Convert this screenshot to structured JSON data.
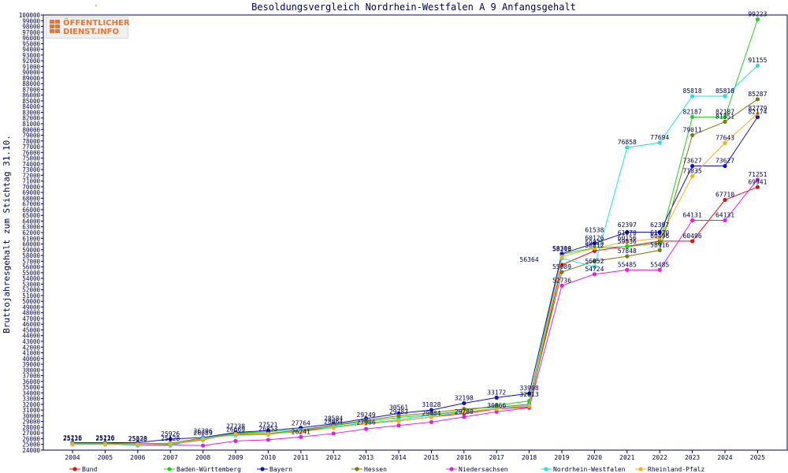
{
  "chart_data": {
    "type": "line",
    "title": "Besoldungsvergleich Nordrhein-Westfalen A 9 Anfangsgehalt",
    "ylabel": "Bruttojahresgehalt zum Stichtag 31.10.",
    "xlabel": "",
    "ylim": [
      24000,
      100000
    ],
    "ytick_step": 1000,
    "grid": false,
    "legend_position": "bottom",
    "x": [
      "2004",
      "2005",
      "2006",
      "2007",
      "2008",
      "2009",
      "2010",
      "2011",
      "2012",
      "2013",
      "2014",
      "2015",
      "2016",
      "2017",
      "2018",
      "2019",
      "2020",
      "2021",
      "2022",
      "2023",
      "2024",
      "2025"
    ],
    "series": [
      {
        "name": "Bund",
        "color": "#e01010",
        "values": [
          25100,
          25100,
          25100,
          25200,
          26100,
          26700,
          26800,
          27300,
          28100,
          28700,
          29100,
          29800,
          30400,
          31200,
          31500,
          56364,
          58800,
          59600,
          60496,
          60496,
          67710,
          69941
        ]
      },
      {
        "name": "Baden-Württemberg",
        "color": "#20d020",
        "values": [
          25200,
          25200,
          25000,
          25200,
          26000,
          27000,
          27200,
          27600,
          28300,
          29000,
          29700,
          30200,
          30900,
          31800,
          32600,
          58213,
          59325,
          59536,
          60160,
          82187,
          82187,
          99223
        ]
      },
      {
        "name": "Bayern",
        "color": "#1010c8",
        "values": [
          25300,
          25300,
          25300,
          25926,
          26200,
          27100,
          27400,
          27900,
          28600,
          29500,
          30400,
          31000,
          32198,
          33172,
          33908,
          58306,
          60126,
          62070,
          62070,
          73627,
          73627,
          82174
        ]
      },
      {
        "name": "Hessen",
        "color": "#7a7a10",
        "values": [
          25200,
          25200,
          25100,
          25000,
          25800,
          26900,
          26900,
          27500,
          28400,
          29200,
          30000,
          30500,
          31200,
          31500,
          32000,
          55089,
          57000,
          57848,
          58916,
          79011,
          81351,
          85287
        ]
      },
      {
        "name": "Niedersachsen",
        "color": "#e020e0",
        "values": [
          25000,
          25000,
          25000,
          24900,
          24800,
          25600,
          25800,
          26300,
          26900,
          27700,
          28300,
          28900,
          29800,
          30700,
          31400,
          52736,
          54724,
          55485,
          55485,
          64131,
          64131,
          71251
        ]
      },
      {
        "name": "Nordrhein-Westfalen",
        "color": "#20e0e0",
        "values": [
          25100,
          25100,
          24800,
          24800,
          26100,
          26600,
          26700,
          27500,
          28100,
          28700,
          29300,
          30100,
          30700,
          31300,
          31800,
          57500,
          56052,
          76858,
          77694,
          85818,
          85818,
          91155
        ]
      },
      {
        "name": "Rheinland-Pfalz",
        "color": "#f0b020",
        "values": [
          25000,
          25000,
          25000,
          25100,
          25900,
          26800,
          26800,
          27200,
          27900,
          28600,
          29100,
          29800,
          30700,
          31200,
          31700,
          57812,
          59256,
          60440,
          61000,
          71835,
          77643,
          82779
        ]
      }
    ],
    "labels_shown": [
      {
        "year": "2004",
        "text": "25120"
      },
      {
        "year": "2004",
        "text": "25216"
      },
      {
        "year": "2005",
        "text": "25120"
      },
      {
        "year": "2005",
        "text": "25216"
      },
      {
        "year": "2006",
        "text": "25128"
      },
      {
        "year": "2006",
        "text": "25038"
      },
      {
        "year": "2007",
        "text": "25926"
      },
      {
        "year": "2007",
        "text": "25128"
      },
      {
        "year": "2008",
        "text": "26396"
      },
      {
        "year": "2008",
        "text": "26089"
      },
      {
        "year": "2009",
        "text": "27238"
      },
      {
        "year": "2009",
        "text": "26669"
      },
      {
        "year": "2010",
        "text": "27521"
      },
      {
        "year": "2010",
        "text": "26853"
      },
      {
        "year": "2011",
        "text": "27764"
      },
      {
        "year": "2011",
        "text": "26241"
      },
      {
        "year": "2012",
        "text": "28584"
      },
      {
        "year": "2012",
        "text": "28064"
      },
      {
        "year": "2013",
        "text": "29249"
      },
      {
        "year": "2013",
        "text": "27906"
      },
      {
        "year": "2014",
        "text": "30561"
      },
      {
        "year": "2014",
        "text": "29783"
      },
      {
        "year": "2015",
        "text": "31028"
      },
      {
        "year": "2015",
        "text": "29484"
      },
      {
        "year": "2016",
        "text": "32198"
      },
      {
        "year": "2016",
        "text": "29780"
      },
      {
        "year": "2017",
        "text": "33172"
      },
      {
        "year": "2017",
        "text": "30866"
      },
      {
        "year": "2018",
        "text": "33908"
      },
      {
        "year": "2018",
        "text": "32813"
      },
      {
        "year": "2018",
        "text": "56364"
      },
      {
        "year": "2019",
        "text": "58306"
      },
      {
        "year": "2019",
        "text": "58213"
      },
      {
        "year": "2019",
        "text": "55089"
      },
      {
        "year": "2019",
        "text": "52736"
      },
      {
        "year": "2020",
        "text": "61538"
      },
      {
        "year": "2020",
        "text": "60126"
      },
      {
        "year": "2020",
        "text": "59325"
      },
      {
        "year": "2020",
        "text": "58812"
      },
      {
        "year": "2020",
        "text": "56052"
      },
      {
        "year": "2020",
        "text": "54724"
      },
      {
        "year": "2021",
        "text": "76858"
      },
      {
        "year": "2021",
        "text": "62397"
      },
      {
        "year": "2021",
        "text": "61070"
      },
      {
        "year": "2021",
        "text": "60156"
      },
      {
        "year": "2021",
        "text": "59536"
      },
      {
        "year": "2021",
        "text": "57848"
      },
      {
        "year": "2021",
        "text": "55485"
      },
      {
        "year": "2022",
        "text": "77694"
      },
      {
        "year": "2022",
        "text": "62397"
      },
      {
        "year": "2022",
        "text": "61070"
      },
      {
        "year": "2022",
        "text": "60496"
      },
      {
        "year": "2022",
        "text": "58916"
      },
      {
        "year": "2022",
        "text": "55485"
      },
      {
        "year": "2023",
        "text": "85818"
      },
      {
        "year": "2023",
        "text": "82187"
      },
      {
        "year": "2023",
        "text": "79011"
      },
      {
        "year": "2023",
        "text": "73627"
      },
      {
        "year": "2023",
        "text": "71835"
      },
      {
        "year": "2023",
        "text": "64131"
      },
      {
        "year": "2023",
        "text": "60496"
      },
      {
        "year": "2024",
        "text": "85818"
      },
      {
        "year": "2024",
        "text": "82187"
      },
      {
        "year": "2024",
        "text": "81351"
      },
      {
        "year": "2024",
        "text": "77643"
      },
      {
        "year": "2024",
        "text": "73627"
      },
      {
        "year": "2024",
        "text": "67710"
      },
      {
        "year": "2024",
        "text": "64131"
      },
      {
        "year": "2025",
        "text": "99223"
      },
      {
        "year": "2025",
        "text": "91155"
      },
      {
        "year": "2025",
        "text": "85287"
      },
      {
        "year": "2025",
        "text": "82779"
      },
      {
        "year": "2025",
        "text": "82174"
      },
      {
        "year": "2025",
        "text": "71251"
      },
      {
        "year": "2025",
        "text": "69941"
      }
    ]
  },
  "logo": {
    "line1": "ÖFFENTLICHER",
    "line2": "DIENST.INFO"
  }
}
